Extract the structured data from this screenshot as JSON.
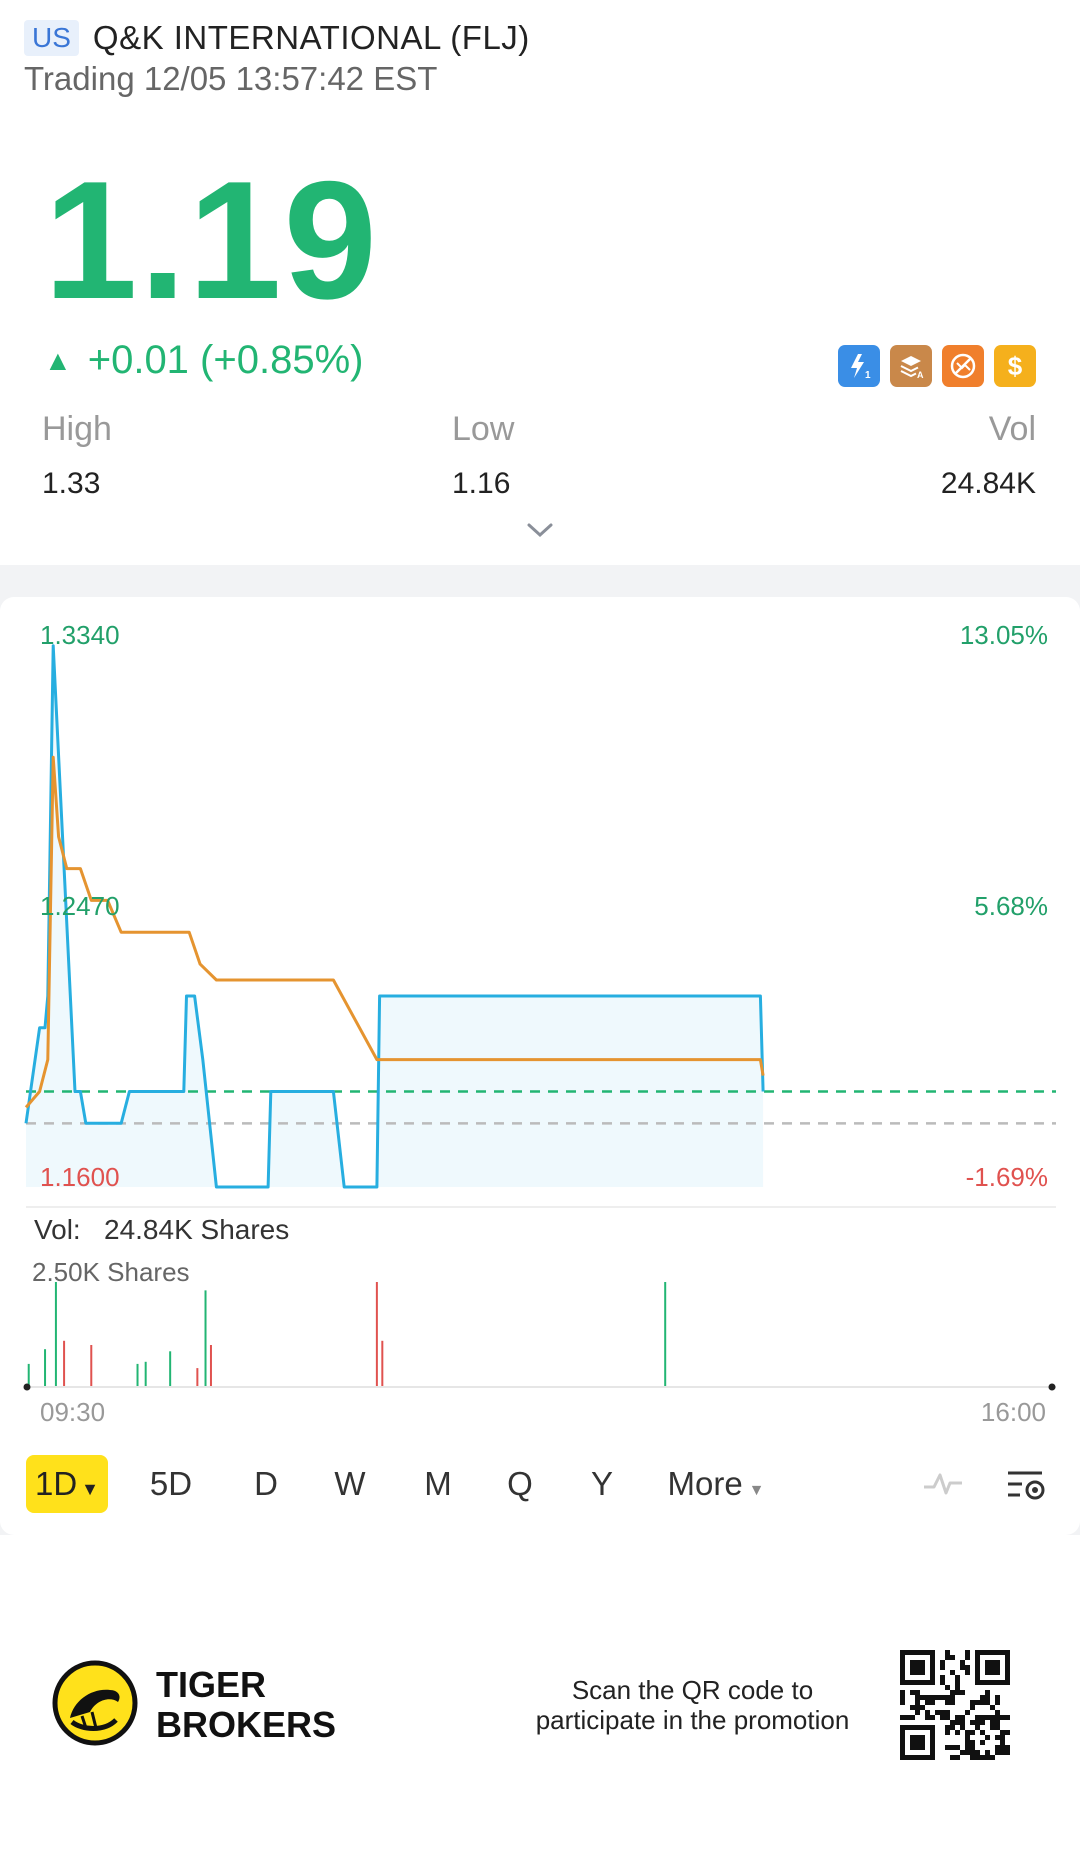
{
  "header": {
    "market_badge": "US",
    "stock_name": "Q&K INTERNATIONAL (FLJ)",
    "status": "Trading 12/05 13:57:42 EST"
  },
  "quote": {
    "price": "1.19",
    "change": "+0.01 (+0.85%)",
    "up_arrow": "▲",
    "color_up": "#22b573",
    "color_down": "#e0524f"
  },
  "feature_icons": [
    "lightning-1-icon",
    "layers-a-icon",
    "no-short-icon",
    "dollar-icon"
  ],
  "stats": {
    "high_label": "High",
    "high_value": "1.33",
    "low_label": "Low",
    "low_value": "1.16",
    "vol_label": "Vol",
    "vol_value": "24.84K"
  },
  "chart": {
    "y_top_left": "1.3340",
    "y_mid_left": "1.2470",
    "y_bot_left": "1.1600",
    "y_top_right": "13.05%",
    "y_mid_right": "5.68%",
    "y_bot_right": "-1.69%",
    "volume_label": "Vol:",
    "volume_value": "24.84K Shares",
    "volume_scale": "2.50K Shares",
    "time_start": "09:30",
    "time_end": "16:00"
  },
  "chart_data": {
    "type": "line",
    "series": [
      {
        "color": "#27aee0",
        "x": [
          0,
          5,
          6,
          7,
          8,
          10,
          18,
          19,
          20,
          22,
          24,
          30,
          35,
          38,
          42,
          48,
          58,
          59,
          60,
          62,
          65,
          70,
          80,
          85,
          89,
          90,
          97,
          102,
          113,
          117,
          129,
          130,
          136,
          137,
          140,
          145,
          150,
          160,
          170,
          180,
          190,
          200,
          210,
          220,
          230,
          240,
          250,
          260,
          270,
          271
        ],
        "y": [
          1.18,
          1.21,
          1.21,
          1.21,
          1.22,
          1.33,
          1.19,
          1.19,
          1.19,
          1.18,
          1.18,
          1.18,
          1.18,
          1.19,
          1.19,
          1.19,
          1.19,
          1.22,
          1.22,
          1.22,
          1.2,
          1.16,
          1.16,
          1.16,
          1.16,
          1.19,
          1.19,
          1.19,
          1.19,
          1.16,
          1.16,
          1.22,
          1.22,
          1.22,
          1.22,
          1.22,
          1.22,
          1.22,
          1.22,
          1.22,
          1.22,
          1.22,
          1.22,
          1.22,
          1.22,
          1.22,
          1.22,
          1.22,
          1.22,
          1.19
        ]
      },
      {
        "color": "#e59430",
        "x": [
          0,
          5,
          8,
          10,
          12,
          15,
          20,
          24,
          30,
          35,
          40,
          60,
          64,
          70,
          85,
          89,
          90,
          95,
          100,
          113,
          129,
          130,
          145,
          160,
          180,
          200,
          230,
          250,
          265,
          270,
          271
        ],
        "y": [
          1.185,
          1.19,
          1.2,
          1.295,
          1.27,
          1.26,
          1.26,
          1.25,
          1.25,
          1.24,
          1.24,
          1.24,
          1.23,
          1.225,
          1.225,
          1.225,
          1.225,
          1.225,
          1.225,
          1.225,
          1.2,
          1.2,
          1.2,
          1.2,
          1.2,
          1.2,
          1.2,
          1.2,
          1.2,
          1.2,
          1.195
        ]
      }
    ],
    "prev_close": 1.18,
    "reference_price": 1.19,
    "ylim": [
      1.16,
      1.334
    ],
    "volume": {
      "bars": [
        {
          "x": 1,
          "v": 0.55,
          "c": "g"
        },
        {
          "x": 7,
          "v": 0.9,
          "c": "g"
        },
        {
          "x": 11,
          "v": 2.5,
          "c": "g"
        },
        {
          "x": 14,
          "v": 1.1,
          "c": "r"
        },
        {
          "x": 24,
          "v": 1.0,
          "c": "r"
        },
        {
          "x": 41,
          "v": 0.55,
          "c": "g"
        },
        {
          "x": 44,
          "v": 0.6,
          "c": "g"
        },
        {
          "x": 53,
          "v": 0.85,
          "c": "g"
        },
        {
          "x": 63,
          "v": 0.45,
          "c": "r"
        },
        {
          "x": 66,
          "v": 2.3,
          "c": "g"
        },
        {
          "x": 68,
          "v": 1.0,
          "c": "r"
        },
        {
          "x": 129,
          "v": 2.5,
          "c": "r"
        },
        {
          "x": 131,
          "v": 1.1,
          "c": "r"
        },
        {
          "x": 235,
          "v": 2.5,
          "c": "g"
        }
      ],
      "max": 2.5
    }
  },
  "periods": [
    "1D",
    "5D",
    "D",
    "W",
    "M",
    "Q",
    "Y",
    "More"
  ],
  "footer": {
    "brand_line1": "TIGER",
    "brand_line2": "BROKERS",
    "promo_line1": "Scan the QR code to",
    "promo_line2": "participate in the promotion"
  }
}
